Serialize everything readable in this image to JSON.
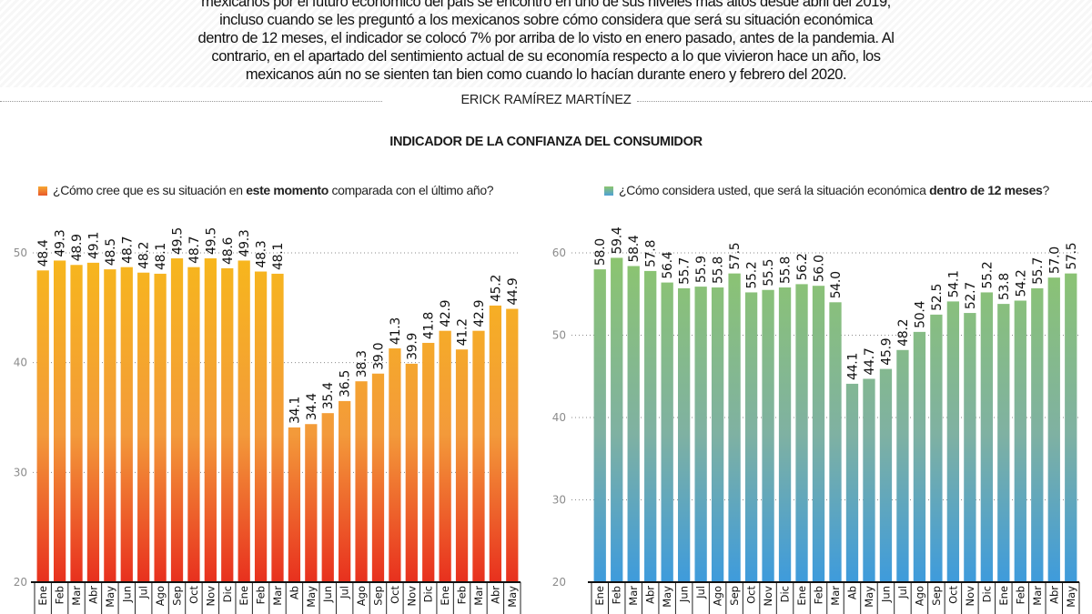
{
  "intro": {
    "lines": [
      "mexicanos por el futuro económico del país se encontró en uno de sus niveles más altos desde abril del 2019,",
      "incluso cuando se les preguntó a los mexicanos sobre cómo considera que será su situación económica",
      "dentro de 12 meses, el indicador se colocó 7% por arriba de lo visto en enero pasado, antes de la pandemia. Al",
      "contrario, en el apartado del sentimiento actual de su economía respecto a lo que vivieron hace un año, los",
      "mexicanos aún no se sienten tan bien como cuando lo hacían durante enero y febrero del 2020."
    ]
  },
  "byline": "ERICK RAMÍREZ MARTÍNEZ",
  "main_title": "INDICADOR DE LA CONFIANZA DEL CONSUMIDOR",
  "legends": {
    "left": {
      "prefix": "¿Cómo cree que es su situación en ",
      "bold": "este momento",
      "suffix": " comparada con el último año?"
    },
    "right": {
      "prefix": "¿Cómo considera usted, que será la situación económica ",
      "bold": "dentro de 12 meses",
      "suffix": "?"
    }
  },
  "colors": {
    "left_top": "#f7b71c",
    "left_mid": "#f39a3a",
    "left_bottom": "#e8301e",
    "right_top": "#8cc56e",
    "right_mid": "#7fb1a2",
    "right_bottom": "#3e9bdc",
    "grid": "#8a8a8a",
    "tick_label": "#8c8c8c"
  },
  "chart_data": [
    {
      "type": "bar",
      "title": "¿Cómo cree que es su situación en este momento comparada con el último año?",
      "xlabel": "",
      "ylabel": "",
      "ylim": [
        20,
        50
      ],
      "yticks": [
        20,
        30,
        40,
        50
      ],
      "grid": true,
      "legend": "top-left",
      "categories": [
        "Ene",
        "Feb",
        "Mar",
        "Abr",
        "May",
        "Jun",
        "Jul",
        "Ago",
        "Sep",
        "Oct",
        "Nov",
        "Dic",
        "Ene",
        "Feb",
        "Mar",
        "Ab",
        "May",
        "Jun",
        "Jul",
        "Ago",
        "Sep",
        "Oct",
        "Nov",
        "Dic",
        "Ene",
        "Feb",
        "Mar",
        "Abr",
        "May"
      ],
      "values": [
        48.4,
        49.3,
        48.9,
        49.1,
        48.5,
        48.7,
        48.2,
        48.1,
        49.5,
        48.7,
        49.5,
        48.6,
        49.3,
        48.3,
        48.1,
        34.1,
        34.4,
        35.4,
        36.5,
        38.3,
        39.0,
        41.3,
        39.9,
        41.8,
        42.9,
        41.2,
        42.9,
        45.2,
        44.9
      ],
      "labels": [
        "48.4",
        "49.3",
        "48.9",
        "49.1",
        "48.5",
        "48.7",
        "48.2",
        "48.1",
        "49.5",
        "48.7",
        "49.5",
        "48.6",
        "49.3",
        "48.3",
        "48.1",
        "34.1",
        "34.4",
        "35.4",
        "36.5",
        "38.3",
        "39.0",
        "41.3",
        "39.9",
        "41.8",
        "42.9",
        "41.2",
        "42.9",
        "45.2",
        "44.9"
      ]
    },
    {
      "type": "bar",
      "title": "¿Cómo considera usted, que será la situación económica dentro de 12 meses?",
      "xlabel": "",
      "ylabel": "",
      "ylim": [
        20,
        60
      ],
      "yticks": [
        20,
        30,
        40,
        50,
        60
      ],
      "grid": true,
      "legend": "top-left",
      "categories": [
        "Ene",
        "Feb",
        "Mar",
        "Abr",
        "May",
        "Jun",
        "Jul",
        "Ago",
        "Sep",
        "Oct",
        "Nov",
        "Dic",
        "Ene",
        "Feb",
        "Mar",
        "Ab",
        "May",
        "Jun",
        "Jul",
        "Ago",
        "Sep",
        "Oct",
        "Nov",
        "Dic",
        "Ene",
        "Feb",
        "Mar",
        "Abr",
        "May"
      ],
      "values": [
        58.0,
        59.4,
        58.4,
        57.8,
        56.4,
        55.7,
        55.9,
        55.8,
        57.5,
        55.2,
        55.5,
        55.8,
        56.2,
        56.0,
        54.0,
        44.1,
        44.7,
        45.9,
        48.2,
        50.4,
        52.5,
        54.1,
        52.7,
        55.2,
        53.8,
        54.2,
        55.7,
        57.0,
        57.5
      ],
      "labels": [
        "58.0",
        "59.4",
        "58.4",
        "57.8",
        "56.4",
        "55.7",
        "55.9",
        "55.8",
        "57.5",
        "55.2",
        "55.5",
        "55.8",
        "56.2",
        "56.0",
        "54.0",
        "44.1",
        "44.7",
        "45.9",
        "48.2",
        "50.4",
        "52.5",
        "54.1",
        "52.7",
        "55.2",
        "53.8",
        "54.2",
        "55.7",
        "57.0",
        "57.5"
      ]
    }
  ]
}
